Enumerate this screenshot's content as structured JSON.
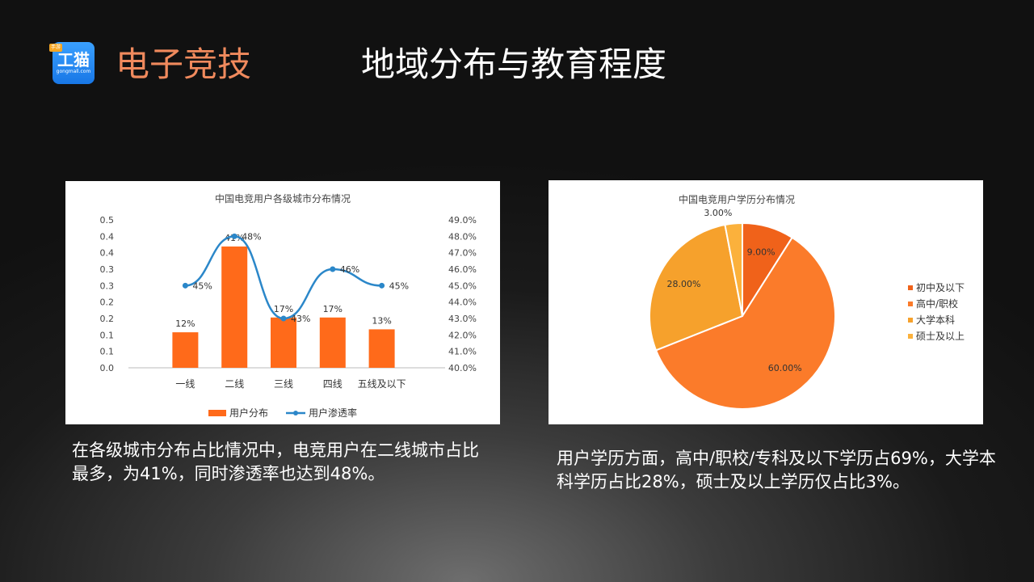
{
  "header": {
    "logo_tag": "手游",
    "logo_text": "工猫",
    "logo_domain": "gongmall.com",
    "brand": "电子竞技",
    "title": "地域分布与教育程度"
  },
  "colors": {
    "orange": "#ff6a1a",
    "blue": "#2b87c9"
  },
  "chart_data": [
    {
      "type": "bar",
      "title": "中国电竞用户各级城市分布情况",
      "categories": [
        "一线",
        "二线",
        "三线",
        "四线",
        "五线及以下"
      ],
      "series": [
        {
          "name": "用户分布",
          "type": "bar",
          "values": [
            0.12,
            0.41,
            0.17,
            0.17,
            0.13
          ],
          "labels": [
            "12%",
            "41%",
            "17%",
            "17%",
            "13%"
          ]
        },
        {
          "name": "用户渗透率",
          "type": "line",
          "axis": "right",
          "values": [
            45,
            48,
            43,
            46,
            45
          ],
          "labels": [
            "45%",
            "48%",
            "43%",
            "46%",
            "45%"
          ]
        }
      ],
      "ylim": [
        0,
        0.5
      ],
      "y_ticks": [
        "0.0",
        "0.1",
        "0.1",
        "0.2",
        "0.2",
        "0.3",
        "0.3",
        "0.4",
        "0.4",
        "0.5"
      ],
      "y2lim": [
        40,
        49
      ],
      "y2_ticks": [
        "40.0%",
        "41.0%",
        "42.0%",
        "43.0%",
        "44.0%",
        "45.0%",
        "46.0%",
        "47.0%",
        "48.0%",
        "49.0%"
      ],
      "legend": "bottom"
    },
    {
      "type": "pie",
      "title": "中国电竞用户学历分布情况",
      "slices": [
        {
          "name": "初中及以下",
          "value": 9.0,
          "label": "9.00%",
          "color": "#f0621a"
        },
        {
          "name": "高中/职校",
          "value": 60.0,
          "label": "60.00%",
          "color": "#fb7b2a"
        },
        {
          "name": "大学本科",
          "value": 28.0,
          "label": "28.00%",
          "color": "#f6a12c"
        },
        {
          "name": "硕士及以上",
          "value": 3.0,
          "label": "3.00%",
          "color": "#fbb13c"
        }
      ],
      "legend": "right"
    }
  ],
  "captions": {
    "left": "在各级城市分布占比情况中，电竞用户在二线城市占比最多，为41%，同时渗透率也达到48%。",
    "right": "用户学历方面，高中/职校/专科及以下学历占69%，大学本科学历占比28%，硕士及以上学历仅占比3%。"
  }
}
